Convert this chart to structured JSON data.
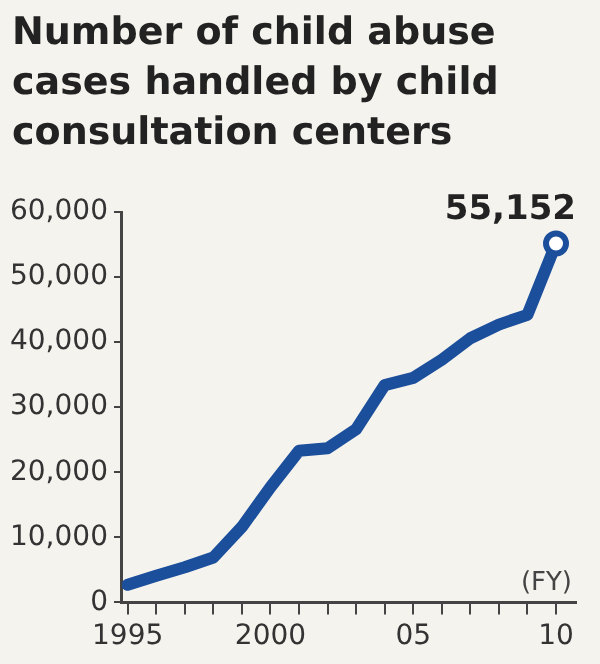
{
  "chart_data": {
    "type": "line",
    "title": "Number of child abuse cases handled by child consultation centers",
    "xlabel": "(FY)",
    "x": [
      1995,
      1996,
      1997,
      1998,
      1999,
      2000,
      2001,
      2002,
      2003,
      2004,
      2005,
      2006,
      2007,
      2008,
      2009,
      2010
    ],
    "series": [
      {
        "color": "#1b4e9b",
        "values": [
          2700,
          4100,
          5400,
          6900,
          11600,
          17700,
          23300,
          23700,
          26600,
          33400,
          34500,
          37300,
          40600,
          42700,
          44200,
          55152
        ]
      }
    ],
    "xlim": [
      1994.8,
      2010.7
    ],
    "xticks": [
      1995,
      {
        "value": 1996,
        "label": null
      },
      {
        "value": 1997,
        "label": null
      },
      {
        "value": 1998,
        "label": null
      },
      {
        "value": 1999,
        "label": null
      },
      2000,
      {
        "value": 2001,
        "label": null
      },
      {
        "value": 2002,
        "label": null
      },
      {
        "value": 2003,
        "label": null
      },
      {
        "value": 2004,
        "label": null
      },
      {
        "value": 2005,
        "label": "05"
      },
      {
        "value": 2006,
        "label": null
      },
      {
        "value": 2007,
        "label": null
      },
      {
        "value": 2008,
        "label": null
      },
      {
        "value": 2009,
        "label": null
      },
      {
        "value": 2010,
        "label": "10"
      }
    ],
    "ylim": [
      0,
      60000
    ],
    "yticks": [
      {
        "value": 0,
        "label": "0"
      },
      {
        "value": 10000,
        "label": "10,000"
      },
      {
        "value": 20000,
        "label": "20,000"
      },
      {
        "value": 30000,
        "label": "30,000"
      },
      {
        "value": 40000,
        "label": "40,000"
      },
      {
        "value": 50000,
        "label": "50,000"
      },
      {
        "value": 60000,
        "label": "60,000"
      }
    ],
    "grid": false,
    "annotations": [
      {
        "text": "55,152",
        "x": 2010,
        "y": 55152
      }
    ]
  }
}
